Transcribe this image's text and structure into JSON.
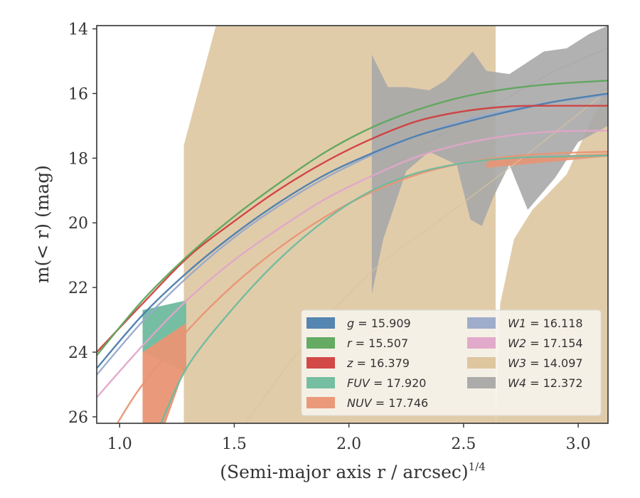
{
  "chart_data": {
    "type": "line",
    "xlabel": "(Semi-major axis r / arcsec)",
    "xlabel_var": "r",
    "xlabel_exp": "1/4",
    "ylabel": "m(< r) (mag)",
    "xlim": [
      0.9,
      3.13
    ],
    "ylim": [
      26.2,
      13.9
    ],
    "y_inverted": true,
    "xticks": [
      1.0,
      1.5,
      2.0,
      2.5,
      3.0
    ],
    "xtick_labels": [
      "1.0",
      "1.5",
      "2.0",
      "2.5",
      "3.0"
    ],
    "yticks": [
      14,
      16,
      18,
      20,
      22,
      24,
      26
    ],
    "ytick_labels": [
      "14",
      "16",
      "18",
      "20",
      "22",
      "24",
      "26"
    ],
    "grid": false,
    "legend_position": "lower-right",
    "legend_columns": 2,
    "series": [
      {
        "name": "g",
        "mag": "15.909",
        "color": "#4c7eae",
        "x": [
          0.9,
          1.1,
          1.3,
          1.5,
          1.7,
          1.9,
          2.1,
          2.3,
          2.5,
          2.7,
          2.9,
          3.13
        ],
        "y": [
          24.5,
          22.85,
          21.5,
          20.35,
          19.35,
          18.5,
          17.85,
          17.3,
          16.9,
          16.55,
          16.25,
          16.0
        ]
      },
      {
        "name": "r",
        "mag": "15.507",
        "color": "#5da65c",
        "x": [
          0.9,
          1.1,
          1.3,
          1.5,
          1.7,
          1.9,
          2.1,
          2.3,
          2.5,
          2.7,
          2.9,
          3.13
        ],
        "y": [
          24.1,
          22.4,
          21.0,
          19.8,
          18.75,
          17.8,
          17.05,
          16.5,
          16.1,
          15.85,
          15.7,
          15.6
        ]
      },
      {
        "name": "z",
        "mag": "16.379",
        "color": "#d03f3f",
        "x": [
          0.9,
          1.1,
          1.3,
          1.5,
          1.7,
          1.9,
          2.1,
          2.3,
          2.5,
          2.7,
          2.9,
          3.13
        ],
        "y": [
          24.0,
          22.5,
          21.05,
          19.95,
          18.95,
          18.1,
          17.4,
          16.85,
          16.55,
          16.4,
          16.38,
          16.38
        ]
      },
      {
        "name": "FUV",
        "mag": "17.920",
        "color": "#6fba9e",
        "x": [
          1.18,
          1.3,
          1.5,
          1.7,
          1.9,
          2.1,
          2.3,
          2.5,
          2.7,
          2.9,
          3.13
        ],
        "y": [
          26.2,
          24.4,
          22.6,
          21.1,
          19.9,
          19.0,
          18.45,
          18.15,
          18.0,
          17.95,
          17.92
        ]
      },
      {
        "name": "NUV",
        "mag": "17.746",
        "color": "#e99574",
        "x": [
          0.99,
          1.1,
          1.3,
          1.5,
          1.7,
          1.9,
          2.1,
          2.3,
          2.5,
          2.7,
          2.9,
          3.13
        ],
        "y": [
          26.2,
          25.0,
          23.3,
          21.9,
          20.75,
          19.8,
          19.05,
          18.5,
          18.15,
          17.95,
          17.85,
          17.8
        ]
      },
      {
        "name": "W1",
        "mag": "16.118",
        "color": "#9aa9c9",
        "x": [
          0.9,
          1.1,
          1.3,
          1.5,
          1.7,
          1.9,
          2.1,
          2.3,
          2.5,
          2.7,
          2.9,
          3.13
        ],
        "y": [
          24.7,
          23.05,
          21.65,
          20.45,
          19.45,
          18.6,
          17.9,
          17.3,
          16.85,
          16.5,
          16.25,
          16.05
        ]
      },
      {
        "name": "W2",
        "mag": "17.154",
        "color": "#e0a5c8",
        "x": [
          0.9,
          1.1,
          1.3,
          1.5,
          1.7,
          1.9,
          2.1,
          2.3,
          2.5,
          2.7,
          2.9,
          3.13
        ],
        "y": [
          25.4,
          23.8,
          22.35,
          21.15,
          20.15,
          19.25,
          18.55,
          17.95,
          17.55,
          17.3,
          17.17,
          17.15
        ]
      },
      {
        "name": "W3",
        "mag": "14.097",
        "color": "#dcc39b",
        "x": [
          1.55,
          1.8,
          2.1,
          2.4,
          2.7,
          2.9,
          3.13
        ],
        "y": [
          26.2,
          23.8,
          21.5,
          19.9,
          18.3,
          17.2,
          15.9
        ]
      },
      {
        "name": "W4",
        "mag": "12.372",
        "color": "#a8a8a8",
        "x": [
          2.1,
          2.4,
          2.7,
          2.9,
          3.13
        ],
        "y": [
          18.6,
          17.3,
          16.1,
          15.3,
          14.6
        ]
      }
    ]
  }
}
